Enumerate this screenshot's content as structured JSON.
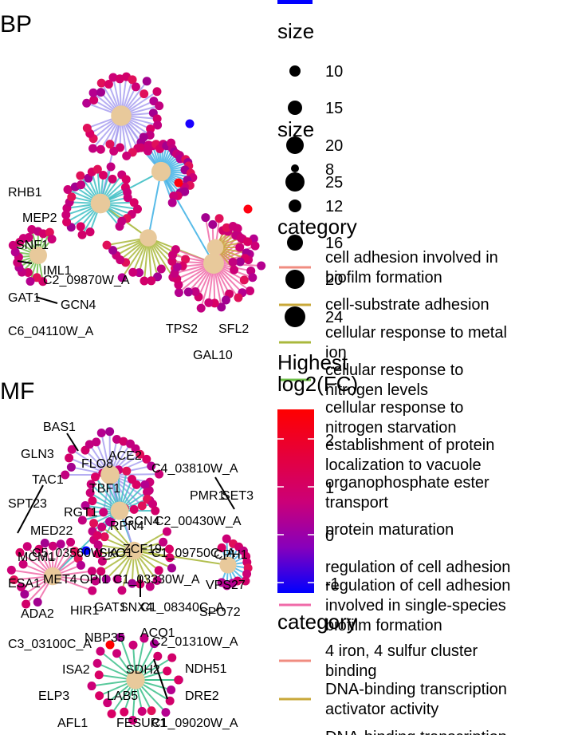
{
  "chart_data": [
    {
      "type": "network",
      "title": "BP",
      "hubs": [
        {
          "id": "h1",
          "children": 34
        },
        {
          "id": "h2",
          "children": 30
        },
        {
          "id": "h3",
          "children": 28
        },
        {
          "id": "h4",
          "children": 16
        },
        {
          "id": "h5",
          "children": 18
        },
        {
          "id": "h6",
          "children": 36
        },
        {
          "id": "h7",
          "children": 12
        }
      ],
      "gene_labels": [
        "RHB1",
        "MEP2",
        "SNF1",
        "IML1",
        "C2_09870W_A",
        "GAT1",
        "GCN4",
        "C6_04110W_A",
        "TPS2",
        "SFL2",
        "GAL10"
      ]
    },
    {
      "type": "network",
      "title": "MF",
      "hubs": [
        {
          "id": "m1",
          "children": 26
        },
        {
          "id": "m2",
          "children": 22
        },
        {
          "id": "m3",
          "children": 20
        },
        {
          "id": "m4",
          "children": 20
        },
        {
          "id": "m5",
          "children": 14
        },
        {
          "id": "m6",
          "children": 24
        }
      ],
      "gene_labels": [
        "BAS1",
        "GLN3",
        "ACE2",
        "FLO8",
        "C4_03810W_A",
        "TAC1",
        "TBF1",
        "PMR1",
        "SET3",
        "SPT23",
        "RGT1",
        "RPN4",
        "GCN4",
        "C2_00430W_A",
        "MED22",
        "MCM1",
        "C5_03560W_A",
        "SKO1",
        "C1_09750C_A",
        "ZCF19",
        "CPH1",
        "C1_03330W_A",
        "ESA1",
        "MET4",
        "OPI1",
        "VPS27",
        "ADA2",
        "HIR1",
        "GAT1",
        "SNX4",
        "C1_08340C_A",
        "SPO72",
        "C3_03100C_A",
        "NBP35",
        "ACO1",
        "C2_01310W_A",
        "ISA2",
        "SDH2",
        "NDH51",
        "ELP3",
        "LAB5",
        "DRE2",
        "AFL1",
        "FESUR1",
        "C1_09020W_A"
      ]
    }
  ],
  "legend": {
    "size_title": "size",
    "size_items": [
      "10",
      "15",
      "20",
      "25"
    ],
    "size2_title": "size",
    "size2_items": [
      "8",
      "12",
      "16",
      "20",
      "24"
    ],
    "category_title": "category",
    "category_items": [
      {
        "label": "cell adhesion involved in biofilm formation",
        "color": "#f08c80"
      },
      {
        "label": "cell-substrate adhesion",
        "color": "#c9a83a"
      },
      {
        "label": "cellular response to metal ion",
        "color": "#aab83c"
      },
      {
        "label": "cellular response to nitrogen levels",
        "color": "#6fbf4a"
      },
      {
        "label": "cellular response to nitrogen starvation",
        "color": "#3bbf8a"
      },
      {
        "label": "establishment of protein localization to vacuole",
        "color": "#3fbfc4"
      },
      {
        "label": "organophosphate ester transport",
        "color": "#46b4e6"
      },
      {
        "label": "protein maturation",
        "color": "#a9a0f0"
      },
      {
        "label": "regulation of cell adhesion",
        "color": "#e07ad8"
      },
      {
        "label": "regulation of cell adhesion involved in single-species biofilm formation",
        "color": "#f06aa8"
      }
    ],
    "fc_title": "Highest log2(FC)",
    "fc_ticks": [
      "2",
      "1",
      "0",
      "-1"
    ],
    "fc_colors": [
      "#ff0000",
      "#0000ff"
    ],
    "category2_title": "category",
    "category2_items": [
      {
        "label": "4 iron, 4 sulfur cluster binding",
        "color": "#f08c80"
      },
      {
        "label": "DNA-binding transcription activator activity",
        "color": "#c9a83a"
      },
      {
        "label": "DNA-binding transcription",
        "color": "#aab83c"
      }
    ]
  },
  "hub_color": "#e8c99b"
}
